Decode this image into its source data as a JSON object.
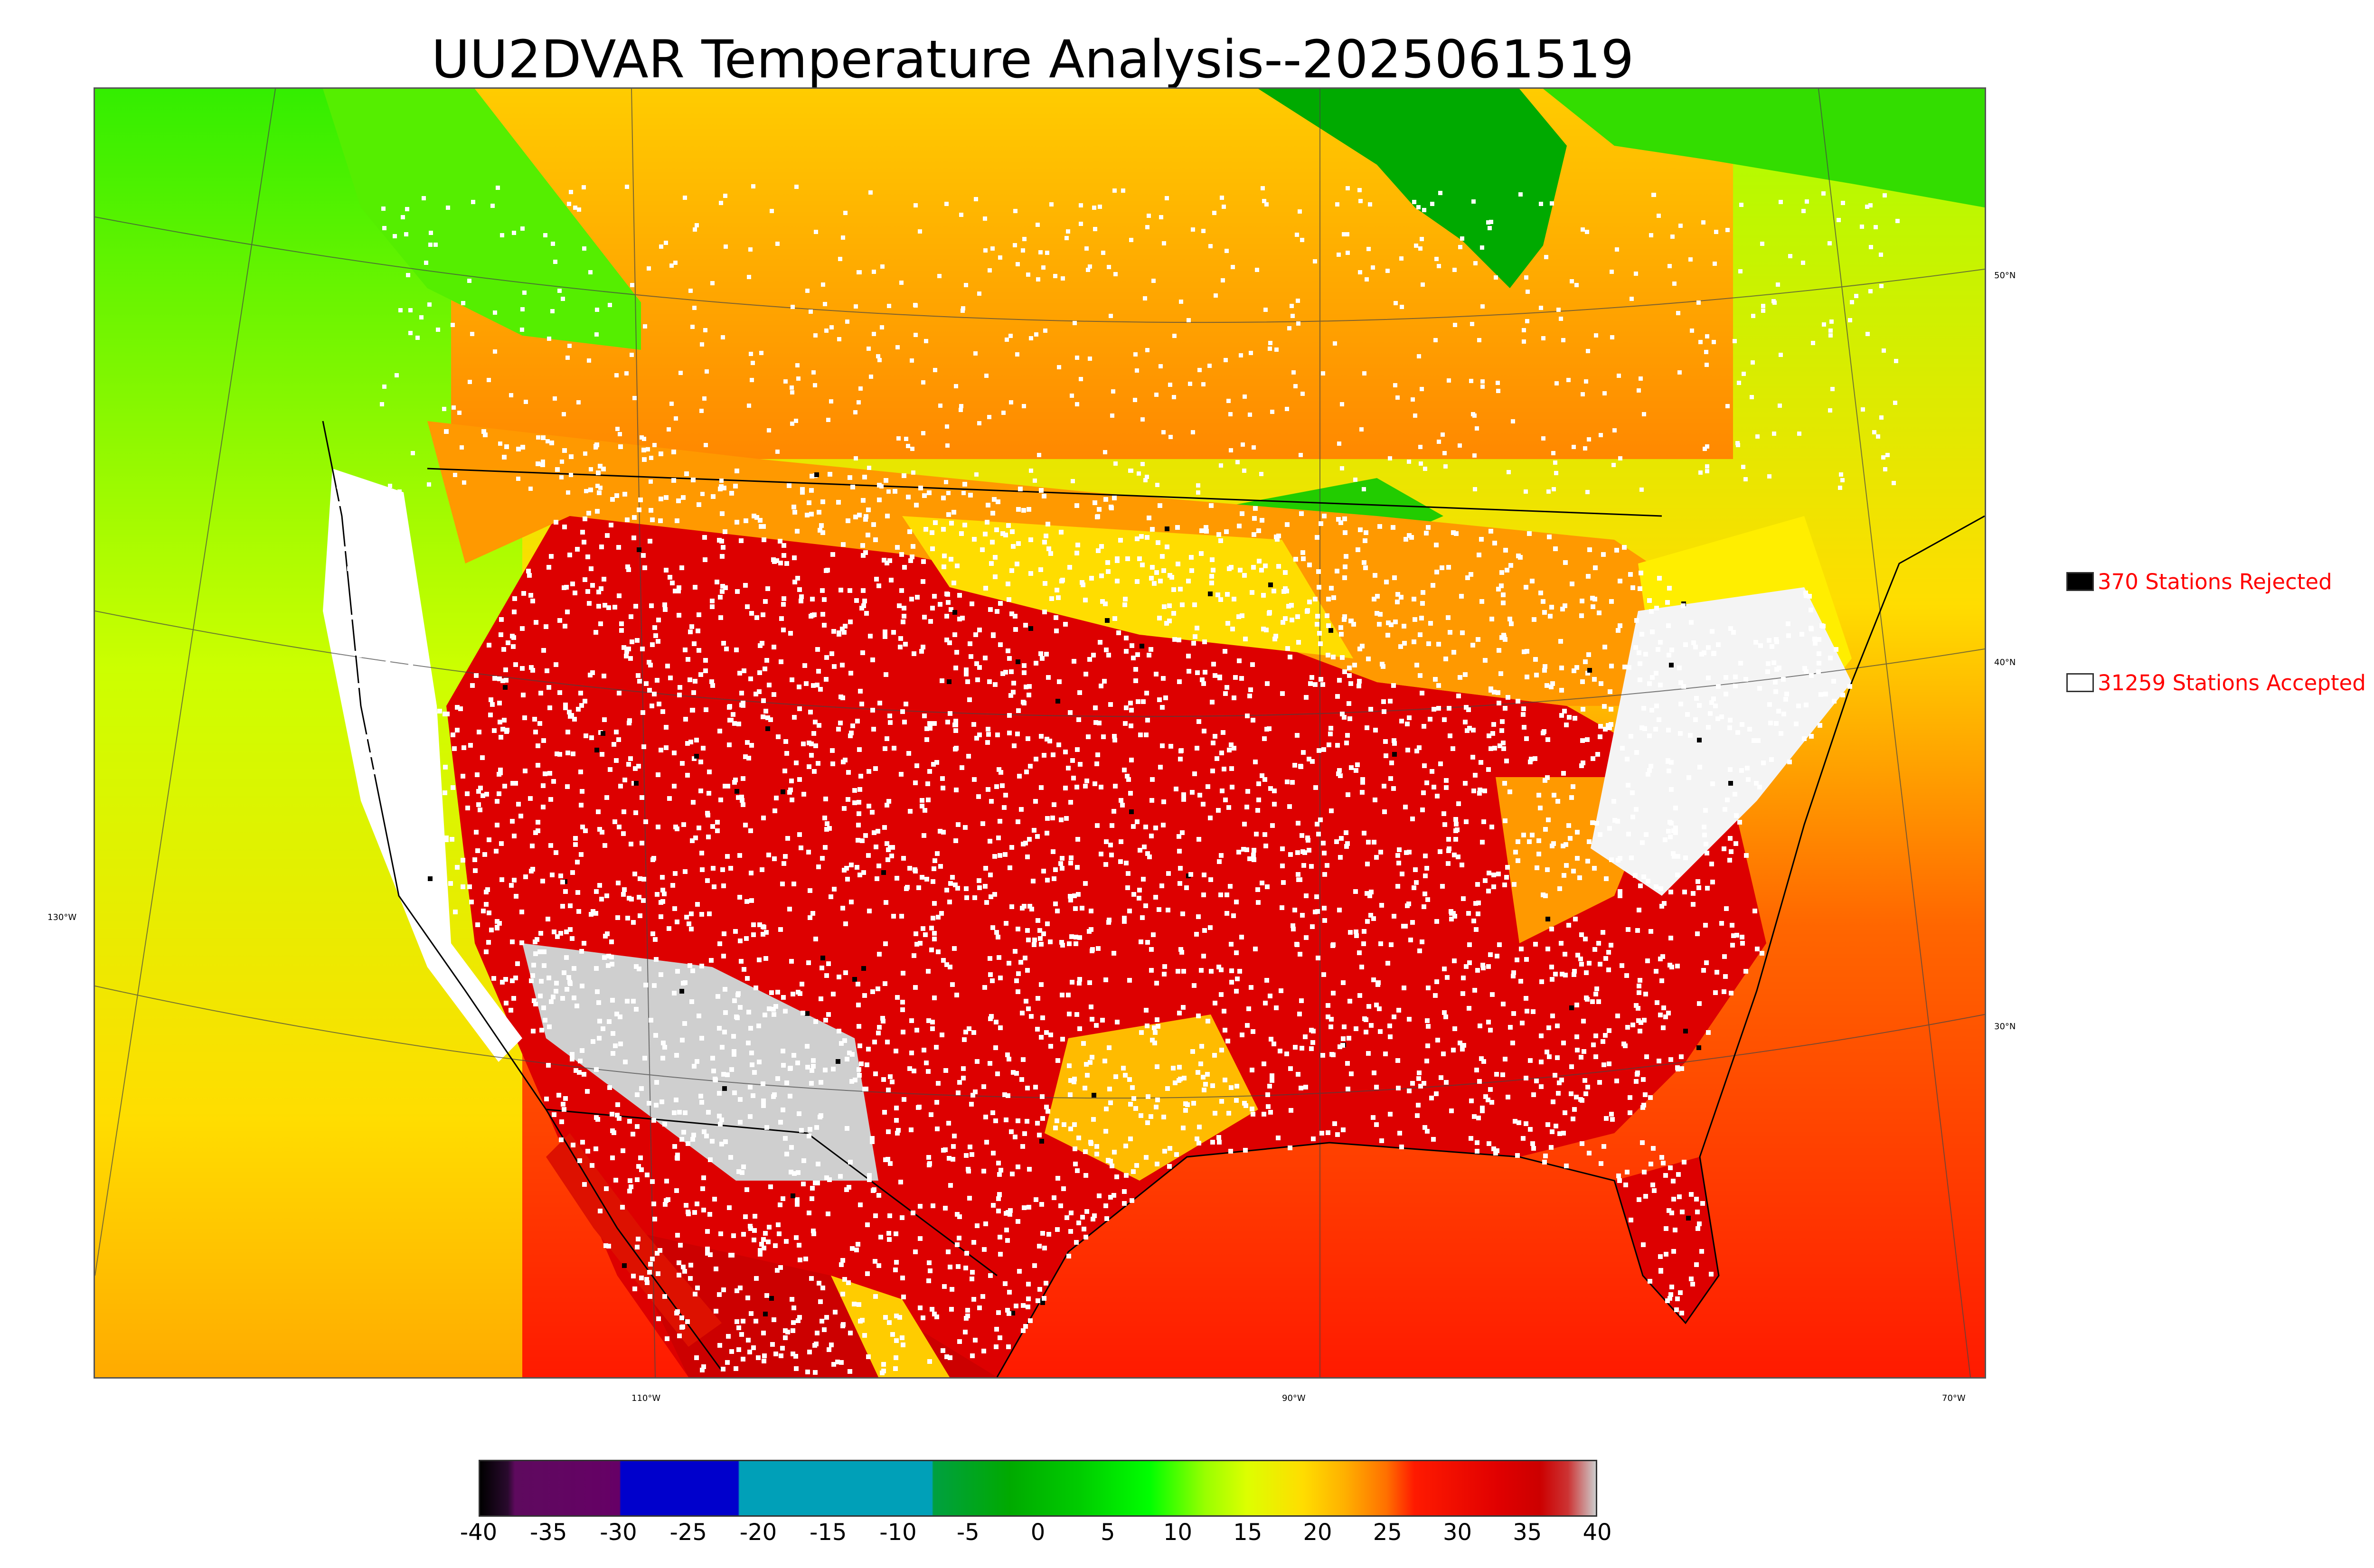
{
  "title": "UU2DVAR Temperature Analysis--2025061519",
  "longitude_labels": [
    "110°W",
    "90°W",
    "70°W"
  ],
  "latitude_labels": [
    "130°W",
    "50°N",
    "40°N",
    "30°N"
  ],
  "legend": {
    "rejected": {
      "label": "370 Stations Rejected",
      "swatch_color": "#000000"
    },
    "accepted": {
      "label": "31259 Stations Accepted",
      "swatch_color": "#ffffff"
    }
  },
  "colorbar": {
    "ticks": [
      "-40",
      "-35",
      "-30",
      "-25",
      "-20",
      "-15",
      "-10",
      "-5",
      "0",
      "5",
      "10",
      "15",
      "20",
      "25",
      "30",
      "35",
      "40"
    ],
    "min": -40,
    "max": 40,
    "stops": [
      {
        "v": -40,
        "color": "#000000"
      },
      {
        "v": -38,
        "color": "#2a0a2e"
      },
      {
        "v": -37.5,
        "color": "#5e0a5e"
      },
      {
        "v": -30,
        "color": "#660066"
      },
      {
        "v": -29.9,
        "color": "#0000cc"
      },
      {
        "v": -21.5,
        "color": "#0000cc"
      },
      {
        "v": -21.4,
        "color": "#00a0b8"
      },
      {
        "v": -7.6,
        "color": "#00a0b8"
      },
      {
        "v": -7.5,
        "color": "#00a040"
      },
      {
        "v": -2,
        "color": "#00aa00"
      },
      {
        "v": 3,
        "color": "#00cc00"
      },
      {
        "v": 8,
        "color": "#00ff00"
      },
      {
        "v": 12,
        "color": "#99ff00"
      },
      {
        "v": 15,
        "color": "#ddff00"
      },
      {
        "v": 19,
        "color": "#ffdd00"
      },
      {
        "v": 22,
        "color": "#ffb000"
      },
      {
        "v": 25,
        "color": "#ff7000"
      },
      {
        "v": 27,
        "color": "#ff1a00"
      },
      {
        "v": 33,
        "color": "#e00000"
      },
      {
        "v": 36,
        "color": "#cc0000"
      },
      {
        "v": 38,
        "color": "#cc3333"
      },
      {
        "v": 40,
        "color": "#cccccc"
      }
    ]
  },
  "colors": {
    "ocean_warm": "#ff2200",
    "land_hot": "#dd0000",
    "north_cool": "#ffb000",
    "canada_green": "#00bb00",
    "pacific_yellow": "#ddee00",
    "station_accepted": "#ffffff",
    "station_rejected": "#000000",
    "legend_text": "#ff0000"
  }
}
